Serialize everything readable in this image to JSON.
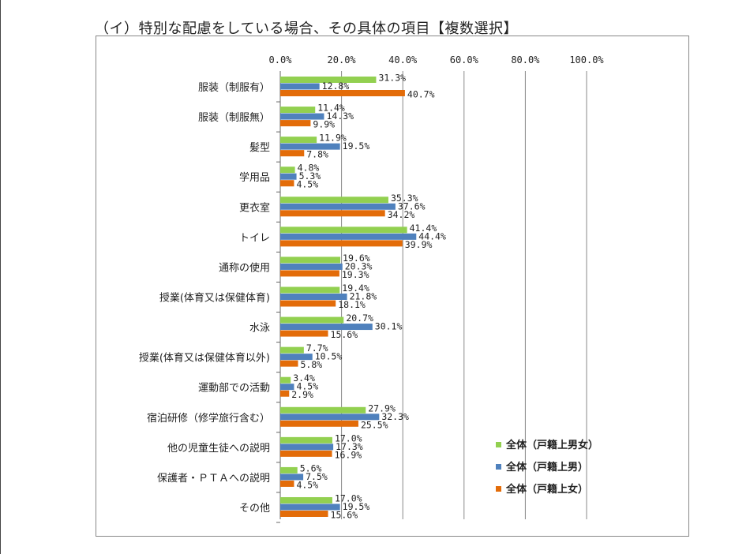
{
  "title": "（イ）特別な配慮をしている場合、その具体の項目【複数選択】",
  "chart_data": {
    "type": "bar",
    "orientation": "horizontal",
    "title": "（イ）特別な配慮をしている場合、その具体の項目【複数選択】",
    "xlim": [
      0,
      100
    ],
    "xticks": [
      "0.0%",
      "20.0%",
      "40.0%",
      "60.0%",
      "80.0%",
      "100.0%"
    ],
    "grid": true,
    "legend_position": "bottom-right",
    "categories": [
      "服装（制服有）",
      "服装（制服無）",
      "髪型",
      "学用品",
      "更衣室",
      "トイレ",
      "通称の使用",
      "授業(体育又は保健体育)",
      "水泳",
      "授業(体育又は保健体育以外)",
      "運動部での活動",
      "宿泊研修（修学旅行含む）",
      "他の児童生徒への説明",
      "保護者・ＰＴＡへの説明",
      "その他"
    ],
    "series": [
      {
        "name": "全体（戸籍上男女）",
        "color": "#92d050",
        "values": [
          31.3,
          11.4,
          11.9,
          4.8,
          35.3,
          41.4,
          19.6,
          19.4,
          20.7,
          7.7,
          3.4,
          27.9,
          17.0,
          5.6,
          17.0
        ]
      },
      {
        "name": "全体（戸籍上男）",
        "color": "#4f81bd",
        "values": [
          12.8,
          14.3,
          19.5,
          5.3,
          37.6,
          44.4,
          20.3,
          21.8,
          30.1,
          10.5,
          4.5,
          32.3,
          17.3,
          7.5,
          19.5
        ]
      },
      {
        "name": "全体（戸籍上女）",
        "color": "#e36c09",
        "values": [
          40.7,
          9.9,
          7.8,
          4.5,
          34.2,
          39.9,
          19.3,
          18.1,
          15.6,
          5.8,
          2.9,
          25.5,
          16.9,
          4.5,
          15.6
        ]
      }
    ]
  }
}
